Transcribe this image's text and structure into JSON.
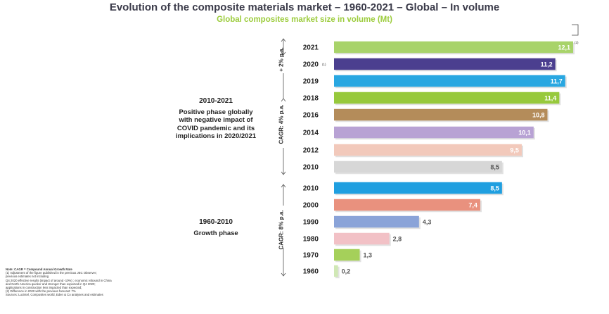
{
  "title": "Evolution of the composite materials market – 1960-2021 – Global – In volume",
  "subtitle": "Global composites market size in volume (Mt)",
  "chart_data": {
    "type": "bar",
    "orientation": "horizontal",
    "title": "Global composites market size in volume (Mt)",
    "unit": "Mt",
    "categories": [
      "2021",
      "2020",
      "2019",
      "2018",
      "2016",
      "2014",
      "2012",
      "2010",
      "2010",
      "2000",
      "1990",
      "1980",
      "1970",
      "1960"
    ],
    "values": [
      12.1,
      11.2,
      11.7,
      11.4,
      10.8,
      10.1,
      9.5,
      8.5,
      8.5,
      7.4,
      4.3,
      2.8,
      1.3,
      0.2
    ],
    "value_labels": [
      "12,1",
      "11,2",
      "11,7",
      "11,4",
      "10,8",
      "10,1",
      "9,5",
      "8,5",
      "8,5",
      "7,4",
      "4,3",
      "2,8",
      "1,3",
      "0,2"
    ],
    "colors": [
      "#a8d36a",
      "#4b3f8f",
      "#29a7e1",
      "#97c93c",
      "#b48c5a",
      "#b8a2d4",
      "#f2c9bb",
      "#d7d7d7",
      "#1f9fe0",
      "#e9917e",
      "#8aa3d8",
      "#f2c1c6",
      "#a5d05a",
      "#d0e8b5"
    ],
    "footnote_marks": [
      {
        "category_index": 1,
        "mark": "(1)"
      },
      {
        "category_index": 0,
        "mark": "(2)"
      }
    ],
    "xlim": [
      0,
      12.5
    ]
  },
  "phases": {
    "recent": {
      "title": "2010-2021",
      "lines": [
        "Positive phase globally",
        "with negative impact of",
        "COVID pandemic and its",
        "implications in 2020/2021"
      ]
    },
    "growth": {
      "title": "1960-2010",
      "lines": [
        "Growth phase"
      ]
    }
  },
  "cagr": {
    "recent_short": "+ 2% p.a.",
    "recent_long": "CAGR: 4% p.a.",
    "growth": "CAGR: 8% p.a."
  },
  "notes": [
    "Note: CAGR = Compound Annual Growth Rate",
    "(1) Adjustment of the figure published in the previous JEC Observer;",
    "previous estimates not including",
    "Q4 2020 effective results (impact of around -10%) ; economic rebound in China",
    "and North America quicker and stronger than expected in Q4 2020;",
    "applications in construction less impacted than expected;",
    "(2) Difference in 2020 with the previous forecast: 7%",
    "Sources: Lucintel, Composites world, Eden & Co analyses and estimates"
  ]
}
